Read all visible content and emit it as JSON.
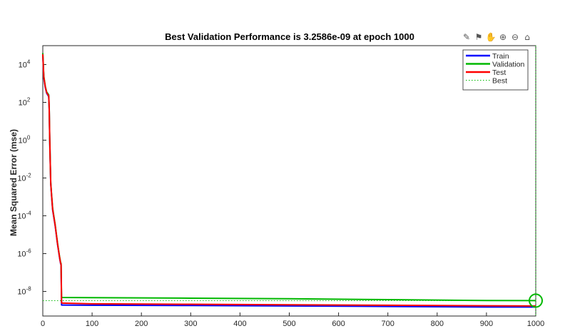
{
  "toolbar": {
    "icons": [
      "brush-icon",
      "data-tips-icon",
      "pan-hand-icon",
      "zoom-in-icon",
      "zoom-out-icon",
      "home-icon"
    ]
  },
  "chart_data": {
    "type": "line",
    "title": "Best Validation Performance is 3.2586e-09 at epoch 1000",
    "xlabel": "",
    "ylabel": "Mean Squared Error  (mse)",
    "xlim": [
      0,
      1000
    ],
    "ylim": [
      5e-10,
      100000.0
    ],
    "yscale": "log",
    "xticks": [
      "0",
      "100",
      "200",
      "300",
      "400",
      "500",
      "600",
      "700",
      "800",
      "900",
      "1000"
    ],
    "yticks": [
      {
        "base": "10",
        "exp": "4",
        "value": 10000
      },
      {
        "base": "10",
        "exp": "2",
        "value": 100
      },
      {
        "base": "10",
        "exp": "0",
        "value": 1
      },
      {
        "base": "10",
        "exp": "-2",
        "value": 0.01
      },
      {
        "base": "10",
        "exp": "-4",
        "value": 0.0001
      },
      {
        "base": "10",
        "exp": "-6",
        "value": 1e-06
      },
      {
        "base": "10",
        "exp": "-8",
        "value": 1e-08
      }
    ],
    "legend_position": "top-right",
    "series": [
      {
        "name": "Train",
        "color": "#0000ff",
        "x": [
          0,
          2,
          5,
          8,
          10,
          12,
          13,
          14,
          16,
          18,
          20,
          25,
          30,
          34,
          36,
          37,
          38,
          40,
          100,
          300,
          500,
          700,
          900,
          1000
        ],
        "y": [
          30000,
          2000,
          600,
          300,
          250,
          200,
          40,
          1,
          0.005,
          0.001,
          0.0002,
          3e-05,
          3e-06,
          6e-07,
          3e-07,
          2.5e-07,
          1.9e-09,
          1.9e-09,
          1.85e-09,
          1.8e-09,
          1.7e-09,
          1.6e-09,
          1.5e-09,
          1.5e-09
        ]
      },
      {
        "name": "Validation",
        "color": "#00b800",
        "x": [
          0,
          2,
          5,
          8,
          10,
          12,
          13,
          14,
          16,
          18,
          20,
          25,
          30,
          34,
          36,
          37,
          38,
          40,
          100,
          300,
          500,
          700,
          900,
          1000
        ],
        "y": [
          40000,
          2500,
          700,
          350,
          300,
          250,
          50,
          1.2,
          0.006,
          0.0012,
          0.00025,
          3.5e-05,
          3.5e-06,
          7e-07,
          3.5e-07,
          3e-07,
          5e-09,
          4.8e-09,
          4.7e-09,
          4.4e-09,
          4.1e-09,
          3.7e-09,
          3.3e-09,
          3.2586e-09
        ]
      },
      {
        "name": "Test",
        "color": "#ff0000",
        "x": [
          0,
          2,
          5,
          8,
          10,
          12,
          13,
          14,
          16,
          18,
          20,
          25,
          30,
          34,
          36,
          37,
          38,
          40,
          100,
          300,
          500,
          700,
          900,
          1000
        ],
        "y": [
          35000,
          2200,
          650,
          320,
          270,
          220,
          45,
          1.1,
          0.0055,
          0.0011,
          0.00022,
          3.2e-05,
          3.2e-06,
          6.5e-07,
          3.2e-07,
          2.8e-07,
          2.5e-09,
          2.4e-09,
          2.2e-09,
          2.1e-09,
          1.95e-09,
          1.85e-09,
          1.75e-09,
          1.7e-09
        ]
      },
      {
        "name": "Best",
        "color": "#00b800",
        "style": "dotted",
        "x": [
          0,
          1000
        ],
        "y": [
          3.2586e-09,
          3.2586e-09
        ]
      }
    ],
    "best_marker": {
      "x": 1000,
      "y": 3.2586e-09
    }
  }
}
